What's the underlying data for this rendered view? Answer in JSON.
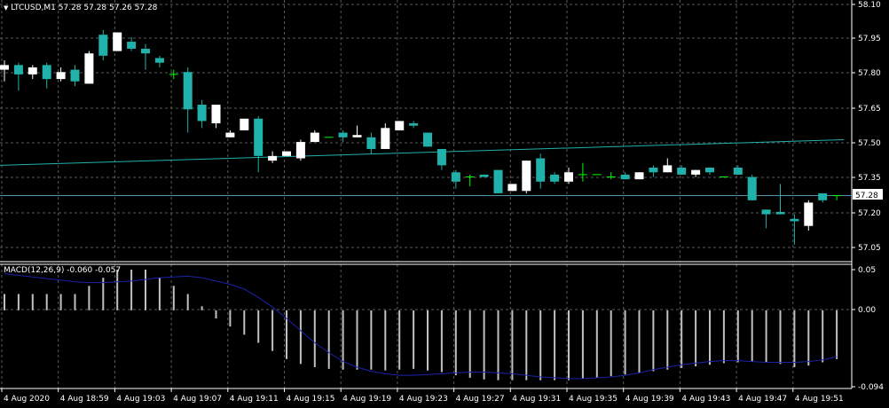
{
  "header": {
    "symbol": "LTCUSD,M1",
    "ohlc": "57.28 57.28 57.26 57.28",
    "triangle_icon": "dropdown-triangle-icon"
  },
  "macd": {
    "label": "MACD(12,26,9)",
    "values": "-0.060 -0.057",
    "price_labels": [
      "0.05",
      "0.00",
      "-0.094"
    ]
  },
  "price_axis": {
    "labels": [
      "58.10",
      "57.95",
      "57.80",
      "57.65",
      "57.50",
      "57.35",
      "57.20",
      "57.05"
    ],
    "current_price": "57.28"
  },
  "time_axis": {
    "labels": [
      "4 Aug 2020",
      "4 Aug 18:59",
      "4 Aug 19:03",
      "4 Aug 19:07",
      "4 Aug 19:11",
      "4 Aug 19:15",
      "4 Aug 19:19",
      "4 Aug 19:23",
      "4 Aug 19:27",
      "4 Aug 19:31",
      "4 Aug 19:35",
      "4 Aug 19:39",
      "4 Aug 19:43",
      "4 Aug 19:47",
      "4 Aug 19:51"
    ]
  },
  "colors": {
    "background": "#000000",
    "bull": "#ffffff",
    "bear": "#20b2aa",
    "doji": "#00ff00",
    "ma_line": "#20b2aa",
    "grid": "#5a5a5a",
    "macd_hist": "#c0c0c0",
    "macd_signal": "#1c22a8",
    "text": "#ffffff"
  },
  "chart_data": {
    "type": "candlestick",
    "symbol": "LTCUSD",
    "timeframe": "M1",
    "ylim": [
      57.0,
      58.1
    ],
    "candles": [
      {
        "o": 57.82,
        "h": 57.86,
        "l": 57.77,
        "c": 57.84
      },
      {
        "o": 57.84,
        "h": 57.85,
        "l": 57.73,
        "c": 57.8
      },
      {
        "o": 57.8,
        "h": 57.84,
        "l": 57.78,
        "c": 57.83
      },
      {
        "o": 57.84,
        "h": 57.85,
        "l": 57.74,
        "c": 57.78
      },
      {
        "o": 57.78,
        "h": 57.83,
        "l": 57.77,
        "c": 57.81
      },
      {
        "o": 57.82,
        "h": 57.84,
        "l": 57.75,
        "c": 57.77
      },
      {
        "o": 57.76,
        "h": 57.9,
        "l": 57.76,
        "c": 57.89
      },
      {
        "o": 57.97,
        "h": 57.99,
        "l": 57.86,
        "c": 57.88
      },
      {
        "o": 57.9,
        "h": 57.98,
        "l": 57.9,
        "c": 57.98
      },
      {
        "o": 57.94,
        "h": 57.96,
        "l": 57.9,
        "c": 57.91
      },
      {
        "o": 57.91,
        "h": 57.93,
        "l": 57.82,
        "c": 57.89
      },
      {
        "o": 57.87,
        "h": 57.88,
        "l": 57.83,
        "c": 57.85
      },
      {
        "o": 57.8,
        "h": 57.82,
        "l": 57.78,
        "c": 57.8
      },
      {
        "o": 57.81,
        "h": 57.83,
        "l": 57.55,
        "c": 57.65
      },
      {
        "o": 57.67,
        "h": 57.69,
        "l": 57.57,
        "c": 57.6
      },
      {
        "o": 57.59,
        "h": 57.67,
        "l": 57.57,
        "c": 57.67
      },
      {
        "o": 57.53,
        "h": 57.56,
        "l": 57.53,
        "c": 57.55
      },
      {
        "o": 57.56,
        "h": 57.61,
        "l": 57.56,
        "c": 57.61
      },
      {
        "o": 57.61,
        "h": 57.62,
        "l": 57.38,
        "c": 57.45
      },
      {
        "o": 57.43,
        "h": 57.47,
        "l": 57.42,
        "c": 57.45
      },
      {
        "o": 57.45,
        "h": 57.47,
        "l": 57.45,
        "c": 57.47
      },
      {
        "o": 57.44,
        "h": 57.52,
        "l": 57.43,
        "c": 57.51
      },
      {
        "o": 57.51,
        "h": 57.56,
        "l": 57.51,
        "c": 57.55
      },
      {
        "o": 57.53,
        "h": 57.53,
        "l": 57.53,
        "c": 57.53
      },
      {
        "o": 57.55,
        "h": 57.56,
        "l": 57.51,
        "c": 57.53
      },
      {
        "o": 57.53,
        "h": 57.58,
        "l": 57.53,
        "c": 57.54
      },
      {
        "o": 57.53,
        "h": 57.55,
        "l": 57.46,
        "c": 57.48
      },
      {
        "o": 57.48,
        "h": 57.59,
        "l": 57.48,
        "c": 57.57
      },
      {
        "o": 57.56,
        "h": 57.6,
        "l": 57.56,
        "c": 57.6
      },
      {
        "o": 57.59,
        "h": 57.6,
        "l": 57.57,
        "c": 57.58
      },
      {
        "o": 57.55,
        "h": 57.55,
        "l": 57.49,
        "c": 57.49
      },
      {
        "o": 57.48,
        "h": 57.48,
        "l": 57.39,
        "c": 57.41
      },
      {
        "o": 57.38,
        "h": 57.39,
        "l": 57.31,
        "c": 57.34
      },
      {
        "o": 57.36,
        "h": 57.37,
        "l": 57.32,
        "c": 57.36
      },
      {
        "o": 57.37,
        "h": 57.37,
        "l": 57.36,
        "c": 57.36
      },
      {
        "o": 57.39,
        "h": 57.39,
        "l": 57.29,
        "c": 57.29
      },
      {
        "o": 57.3,
        "h": 57.33,
        "l": 57.3,
        "c": 57.33
      },
      {
        "o": 57.3,
        "h": 57.43,
        "l": 57.29,
        "c": 57.43
      },
      {
        "o": 57.44,
        "h": 57.46,
        "l": 57.31,
        "c": 57.34
      },
      {
        "o": 57.37,
        "h": 57.38,
        "l": 57.33,
        "c": 57.34
      },
      {
        "o": 57.34,
        "h": 57.4,
        "l": 57.33,
        "c": 57.38
      },
      {
        "o": 57.37,
        "h": 57.42,
        "l": 57.34,
        "c": 57.37
      },
      {
        "o": 57.37,
        "h": 57.37,
        "l": 57.37,
        "c": 57.37
      },
      {
        "o": 57.36,
        "h": 57.38,
        "l": 57.35,
        "c": 57.36
      },
      {
        "o": 57.37,
        "h": 57.38,
        "l": 57.35,
        "c": 57.35
      },
      {
        "o": 57.35,
        "h": 57.38,
        "l": 57.35,
        "c": 57.38
      },
      {
        "o": 57.4,
        "h": 57.41,
        "l": 57.36,
        "c": 57.38
      },
      {
        "o": 57.38,
        "h": 57.44,
        "l": 57.38,
        "c": 57.41
      },
      {
        "o": 57.4,
        "h": 57.41,
        "l": 57.37,
        "c": 57.37
      },
      {
        "o": 57.37,
        "h": 57.39,
        "l": 57.36,
        "c": 57.39
      },
      {
        "o": 57.4,
        "h": 57.4,
        "l": 57.37,
        "c": 57.38
      },
      {
        "o": 57.36,
        "h": 57.36,
        "l": 57.36,
        "c": 57.36
      },
      {
        "o": 57.4,
        "h": 57.41,
        "l": 57.37,
        "c": 57.37
      },
      {
        "o": 57.36,
        "h": 57.37,
        "l": 57.26,
        "c": 57.26
      },
      {
        "o": 57.22,
        "h": 57.22,
        "l": 57.14,
        "c": 57.2
      },
      {
        "o": 57.21,
        "h": 57.33,
        "l": 57.2,
        "c": 57.2
      },
      {
        "o": 57.18,
        "h": 57.2,
        "l": 57.07,
        "c": 57.17
      },
      {
        "o": 57.15,
        "h": 57.26,
        "l": 57.13,
        "c": 57.25
      },
      {
        "o": 57.29,
        "h": 57.29,
        "l": 57.25,
        "c": 57.26
      },
      {
        "o": 57.28,
        "h": 57.28,
        "l": 57.26,
        "c": 57.28
      }
    ],
    "ma_line": {
      "start": 57.41,
      "end": 57.52
    },
    "current_price": 57.28,
    "macd": {
      "ylim": [
        -0.094,
        0.05
      ],
      "histogram": [
        0.02,
        0.02,
        0.02,
        0.02,
        0.02,
        0.02,
        0.03,
        0.04,
        0.05,
        0.05,
        0.05,
        0.04,
        0.03,
        0.02,
        0.005,
        -0.01,
        -0.02,
        -0.03,
        -0.04,
        -0.05,
        -0.06,
        -0.066,
        -0.07,
        -0.072,
        -0.073,
        -0.073,
        -0.073,
        -0.074,
        -0.073,
        -0.072,
        -0.074,
        -0.076,
        -0.08,
        -0.083,
        -0.085,
        -0.086,
        -0.086,
        -0.086,
        -0.086,
        -0.086,
        -0.086,
        -0.084,
        -0.083,
        -0.081,
        -0.079,
        -0.077,
        -0.075,
        -0.073,
        -0.071,
        -0.069,
        -0.067,
        -0.065,
        -0.064,
        -0.063,
        -0.064,
        -0.066,
        -0.07,
        -0.068,
        -0.064,
        -0.06
      ],
      "signal": [
        0.045,
        0.043,
        0.041,
        0.039,
        0.037,
        0.035,
        0.034,
        0.034,
        0.035,
        0.036,
        0.038,
        0.04,
        0.041,
        0.042,
        0.04,
        0.036,
        0.032,
        0.026,
        0.016,
        0.004,
        -0.01,
        -0.025,
        -0.04,
        -0.052,
        -0.063,
        -0.07,
        -0.075,
        -0.078,
        -0.08,
        -0.08,
        -0.079,
        -0.078,
        -0.077,
        -0.076,
        -0.076,
        -0.077,
        -0.078,
        -0.08,
        -0.082,
        -0.083,
        -0.084,
        -0.084,
        -0.083,
        -0.082,
        -0.08,
        -0.077,
        -0.073,
        -0.07,
        -0.067,
        -0.065,
        -0.063,
        -0.062,
        -0.062,
        -0.063,
        -0.064,
        -0.064,
        -0.064,
        -0.063,
        -0.061,
        -0.057
      ]
    }
  }
}
